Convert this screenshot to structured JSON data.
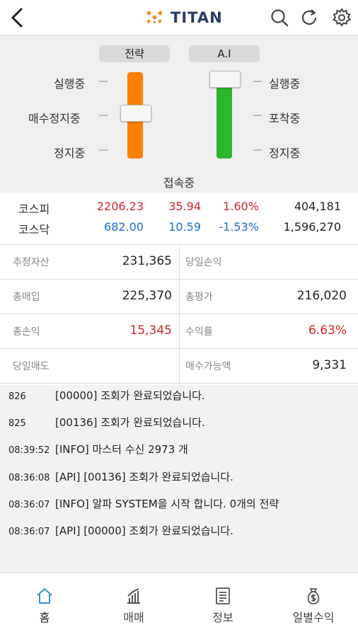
{
  "header": {
    "brand": "TITAN",
    "icons": [
      "back-arrow-icon",
      "search-icon",
      "refresh-icon",
      "gear-icon"
    ]
  },
  "control": {
    "strategy_label": "전략",
    "ai_label": "A.I",
    "left_states": [
      "실행중",
      "매수정지중",
      "정지중"
    ],
    "right_states": [
      "실행중",
      "포착중",
      "정지중"
    ],
    "strategy_state": "매수정지중",
    "ai_state": "실행중",
    "strategy_color": "#ff7f00",
    "ai_color": "#2db52d",
    "connection_status": "접속중"
  },
  "indices": [
    {
      "name": "코스피",
      "value": "2206.23",
      "change": "35.94",
      "rate": "1.60%",
      "volume": "404,181",
      "color": "#d0242b"
    },
    {
      "name": "코스닥",
      "value": "682.00",
      "change": "10.59",
      "rate": "-1.53%",
      "volume": "1,596,270",
      "color": "#1d6fd0"
    }
  ],
  "assets": [
    {
      "label": "추정자산",
      "value": "231,365"
    },
    {
      "label": "당일손익",
      "value": ""
    },
    {
      "label": "총매입",
      "value": "225,370"
    },
    {
      "label": "총평가",
      "value": "216,020"
    },
    {
      "label": "총손익",
      "value": "15,345",
      "color": "#d0242b"
    },
    {
      "label": "수익률",
      "value": "6.63%",
      "color": "#d0242b"
    },
    {
      "label": "당일매도",
      "value": ""
    },
    {
      "label": "매수가능액",
      "value": "9,331"
    }
  ],
  "log": [
    {
      "time": "826",
      "msg": "[00000] 조회가 완료되었습니다."
    },
    {
      "time": "825",
      "msg": "[00136] 조회가 완료되었습니다."
    },
    {
      "time": "08:39:52",
      "msg": "[INFO] 마스터 수신 2973 개"
    },
    {
      "time": "08:36:08",
      "msg": "[API] [00136] 조회가 완료되었습니다."
    },
    {
      "time": "08:36:07",
      "msg": "[INFO] 알파 SYSTEM을 시작 합니다. 0개의 전략"
    },
    {
      "time": "08:36:07",
      "msg": "[API] [00000] 조회가 완료되었습니다."
    }
  ],
  "nav": [
    {
      "label": "홈",
      "icon": "home-icon",
      "active": true
    },
    {
      "label": "매매",
      "icon": "bar-chart-icon",
      "active": false
    },
    {
      "label": "정보",
      "icon": "document-icon",
      "active": false
    },
    {
      "label": "일별수익",
      "icon": "money-bag-icon",
      "active": false
    }
  ],
  "colors": {
    "active_nav": "#3a8fd6",
    "accent": "#ff7f00"
  }
}
